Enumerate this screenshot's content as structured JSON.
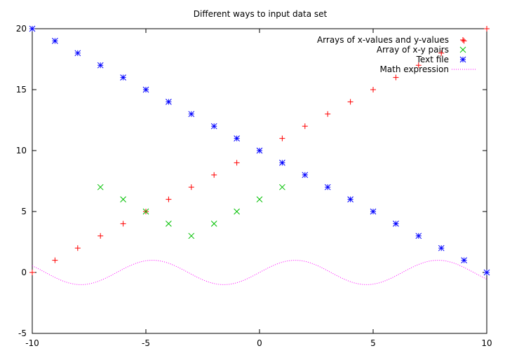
{
  "chart_data": {
    "type": "scatter",
    "title": "Different ways to input data set",
    "xlabel": "",
    "ylabel": "",
    "xlim": [
      -10,
      10
    ],
    "ylim": [
      -5,
      20
    ],
    "x_ticks": [
      -10,
      -5,
      0,
      5,
      10
    ],
    "y_ticks": [
      -5,
      0,
      5,
      10,
      15,
      20
    ],
    "grid": false,
    "legend_position": "top-right",
    "series": [
      {
        "name": "Arrays of x-values and y-values",
        "marker": "plus",
        "color": "#ff0000",
        "x": [
          -10,
          -9,
          -8,
          -7,
          -6,
          -5,
          -4,
          -3,
          -2,
          -1,
          0,
          1,
          2,
          3,
          4,
          5,
          6,
          7,
          8,
          9,
          10
        ],
        "y": [
          0,
          1,
          2,
          3,
          4,
          5,
          6,
          7,
          8,
          9,
          10,
          11,
          12,
          13,
          14,
          15,
          16,
          17,
          18,
          19,
          20
        ]
      },
      {
        "name": "Array of x-y pairs",
        "marker": "cross",
        "color": "#00c000",
        "x": [
          -7,
          -6,
          -5,
          -4,
          -3,
          -2,
          -1,
          0,
          1
        ],
        "y": [
          7,
          6,
          5,
          4,
          3,
          4,
          5,
          6,
          7
        ]
      },
      {
        "name": "Text file",
        "marker": "star",
        "color": "#0000ff",
        "x": [
          -10,
          -9,
          -8,
          -7,
          -6,
          -5,
          -4,
          -3,
          -2,
          -1,
          0,
          1,
          2,
          3,
          4,
          5,
          6,
          7,
          8,
          9,
          10
        ],
        "y": [
          20,
          19,
          18,
          17,
          16,
          15,
          14,
          13,
          12,
          11,
          10,
          9,
          8,
          7,
          6,
          5,
          4,
          3,
          2,
          1,
          0
        ]
      },
      {
        "name": "Math expression",
        "marker": "line-dotted",
        "color": "#ff00ff",
        "function": "sin(x)",
        "x_range": [
          -10,
          10
        ]
      }
    ]
  }
}
